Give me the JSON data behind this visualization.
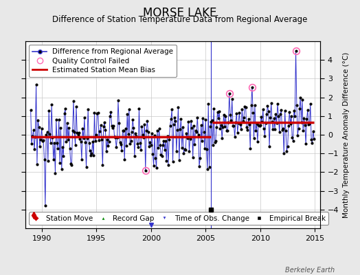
{
  "title": "MORSE LAKE",
  "subtitle": "Difference of Station Temperature Data from Regional Average",
  "ylabel": "Monthly Temperature Anomaly Difference (°C)",
  "xlim": [
    1988.5,
    2015.5
  ],
  "ylim": [
    -5,
    5
  ],
  "yticks": [
    -4,
    -3,
    -2,
    -1,
    0,
    1,
    2,
    3,
    4
  ],
  "xticks": [
    1990,
    1995,
    2000,
    2005,
    2010,
    2015
  ],
  "background_color": "#e8e8e8",
  "plot_bg_color": "#ffffff",
  "line_color": "#3333cc",
  "marker_color": "#000000",
  "bias_color": "#cc0000",
  "grid_color": "#c8c8c8",
  "qc_fail_color": "#ff69b4",
  "break_year": 2005.5,
  "bias_early": -0.1,
  "bias_late": 0.65,
  "station_move_year": 1989.25,
  "station_move_val": -4.3,
  "obs_change_year": 2000.0,
  "empirical_break_year": 2005.5,
  "empirical_break_val": -4.0,
  "title_fontsize": 12,
  "subtitle_fontsize": 8.5,
  "axis_fontsize": 7.5,
  "tick_fontsize": 8,
  "legend_fontsize": 7.5,
  "watermark": "Berkeley Earth"
}
